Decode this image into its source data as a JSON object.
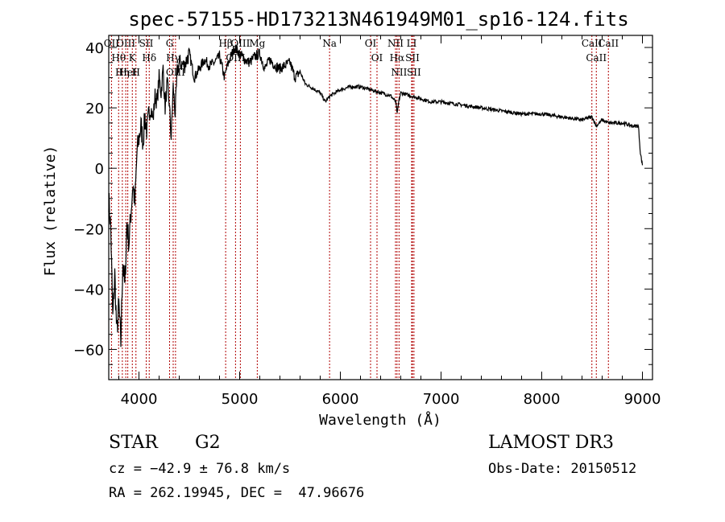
{
  "chart_data": {
    "type": "line",
    "title": "spec-57155-HD173213N461949M01_sp16-124.fits",
    "xlabel": "Wavelength (Å)",
    "ylabel": "Flux (relative)",
    "xlim": [
      3700,
      9100
    ],
    "ylim": [
      -70,
      44
    ],
    "xticks": [
      4000,
      5000,
      6000,
      7000,
      8000,
      9000
    ],
    "yticks": [
      -60,
      -40,
      -20,
      0,
      20,
      40
    ],
    "series": [
      {
        "name": "flux",
        "x": [
          3700,
          3720,
          3740,
          3760,
          3780,
          3800,
          3820,
          3840,
          3860,
          3880,
          3900,
          3920,
          3940,
          3960,
          3980,
          4000,
          4020,
          4040,
          4060,
          4080,
          4100,
          4120,
          4140,
          4160,
          4180,
          4200,
          4220,
          4240,
          4260,
          4280,
          4300,
          4320,
          4340,
          4360,
          4380,
          4400,
          4450,
          4500,
          4550,
          4600,
          4650,
          4700,
          4750,
          4800,
          4850,
          4870,
          4900,
          4950,
          5000,
          5050,
          5100,
          5150,
          5200,
          5250,
          5300,
          5350,
          5400,
          5450,
          5500,
          5550,
          5600,
          5650,
          5700,
          5750,
          5800,
          5850,
          5900,
          5950,
          6000,
          6100,
          6200,
          6300,
          6400,
          6500,
          6550,
          6565,
          6580,
          6600,
          6700,
          6800,
          6900,
          7000,
          7200,
          7400,
          7600,
          7800,
          8000,
          8200,
          8400,
          8500,
          8542,
          8600,
          8662,
          8700,
          8800,
          8900,
          8960,
          8980,
          9000
        ],
        "y": [
          -10,
          -20,
          -50,
          -35,
          -55,
          -45,
          -58,
          -30,
          -40,
          -18,
          -25,
          -15,
          -5,
          -12,
          5,
          10,
          14,
          9,
          17,
          12,
          18,
          20,
          16,
          24,
          22,
          30,
          25,
          33,
          20,
          28,
          22,
          10,
          27,
          18,
          32,
          35,
          34,
          38,
          30,
          33,
          36,
          34,
          35,
          37,
          30,
          33,
          36,
          40,
          38,
          36,
          35,
          37,
          38,
          33,
          36,
          34,
          33,
          34,
          35,
          30,
          32,
          28,
          27,
          26,
          25,
          22,
          24,
          25,
          26,
          27,
          27,
          26,
          25,
          24,
          22,
          18,
          22,
          25,
          24,
          23,
          22,
          22,
          21,
          20,
          19,
          18,
          18,
          17,
          16,
          17,
          14,
          16,
          15,
          15,
          15,
          14,
          14,
          5,
          1
        ]
      }
    ],
    "spectral_lines": [
      {
        "label": "Hθ",
        "wavelength": 3798
      },
      {
        "label": "OII",
        "wavelength": 3727
      },
      {
        "label": "OIII",
        "wavelength": 3869
      },
      {
        "label": "K",
        "wavelength": 3934
      },
      {
        "label": "HeI",
        "wavelength": 3889
      },
      {
        "label": "Hη",
        "wavelength": 3835
      },
      {
        "label": "H",
        "wavelength": 3970
      },
      {
        "label": "SII",
        "wavelength": 4072
      },
      {
        "label": "Hδ",
        "wavelength": 4102
      },
      {
        "label": "OIII",
        "wavelength": 4363
      },
      {
        "label": "Hγ",
        "wavelength": 4340
      },
      {
        "label": "G",
        "wavelength": 4304
      },
      {
        "label": "Hβ",
        "wavelength": 4861
      },
      {
        "label": "OIII",
        "wavelength": 4959
      },
      {
        "label": "OIII",
        "wavelength": 5007
      },
      {
        "label": "Mg",
        "wavelength": 5175
      },
      {
        "label": "Na",
        "wavelength": 5893
      },
      {
        "label": "OI",
        "wavelength": 6300
      },
      {
        "label": "OI",
        "wavelength": 6364
      },
      {
        "label": "Hα",
        "wavelength": 6563
      },
      {
        "label": "NII",
        "wavelength": 6548
      },
      {
        "label": "NII",
        "wavelength": 6583
      },
      {
        "label": "SII",
        "wavelength": 6716
      },
      {
        "label": "SII",
        "wavelength": 6731
      },
      {
        "label": "LI",
        "wavelength": 6708
      },
      {
        "label": "CaII",
        "wavelength": 8498
      },
      {
        "label": "CaII",
        "wavelength": 8542
      },
      {
        "label": "CaII",
        "wavelength": 8662
      }
    ]
  },
  "info": {
    "object_class": "STAR",
    "subclass": "G2",
    "survey": "LAMOST DR3",
    "cz": "cz = −42.9 ± 76.8 km/s",
    "obs_date": "Obs-Date: 20150512",
    "coords": "RA = 262.19945, DEC =  47.96676"
  },
  "colors": {
    "line_marker": "#b00000",
    "axis": "#000000",
    "spectrum": "#000000"
  }
}
